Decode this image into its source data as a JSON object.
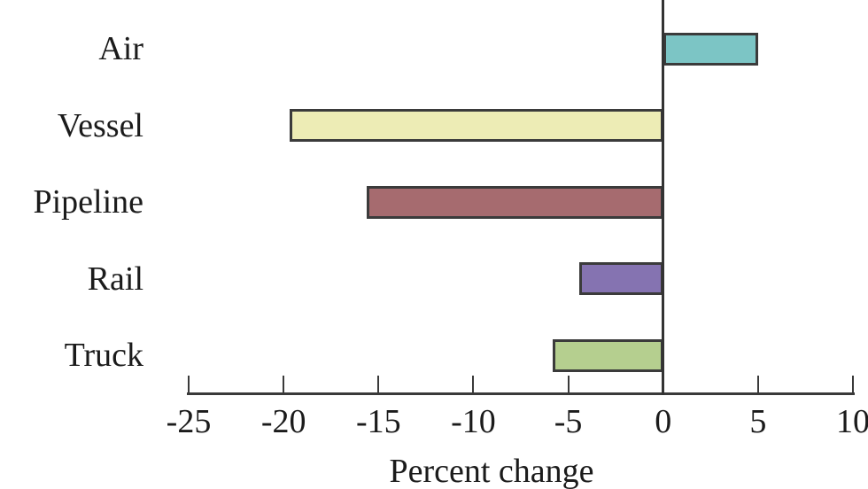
{
  "figure": {
    "background": "#ffffff",
    "axis_color": "#3a3a3a",
    "text_color": "#1b1b1b",
    "bar_border_color": "#3b3b3b"
  },
  "chart_data": {
    "type": "bar",
    "orientation": "horizontal",
    "title": "",
    "xlabel": "Percent change",
    "ylabel": "",
    "categories": [
      "Air",
      "Vessel",
      "Pipeline",
      "Rail",
      "Truck"
    ],
    "values": [
      5.0,
      -19.7,
      -15.6,
      -4.4,
      -5.8
    ],
    "bar_colors": [
      "#7cc5c5",
      "#edecb5",
      "#a66b6f",
      "#8573b1",
      "#b5cf8f"
    ],
    "xlim": [
      -25,
      10
    ],
    "xticks": [
      -25,
      -20,
      -15,
      -10,
      -5,
      0,
      5,
      10
    ],
    "xtick_labels": [
      "-25",
      "-20",
      "-15",
      "-10",
      "-5",
      "0",
      "5",
      "10"
    ],
    "grid": false,
    "legend": false,
    "zero_baseline": true
  }
}
